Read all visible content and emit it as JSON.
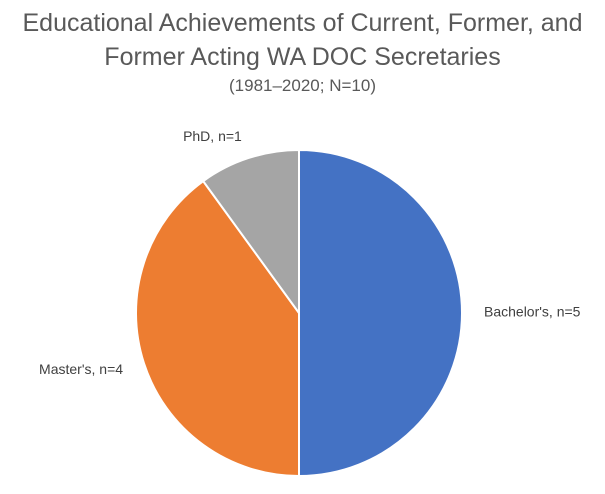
{
  "chart_data": {
    "type": "pie",
    "title": "Educational Achievements of Current, Former, and Former Acting WA DOC Secretaries",
    "subtitle": "(1981–2020; N=10)",
    "categories": [
      "Bachelor's, n=5",
      "Master's, n=4",
      "PhD, n=1"
    ],
    "values": [
      5,
      4,
      1
    ],
    "colors": [
      "#4472c4",
      "#ed7d31",
      "#a5a5a5"
    ]
  }
}
